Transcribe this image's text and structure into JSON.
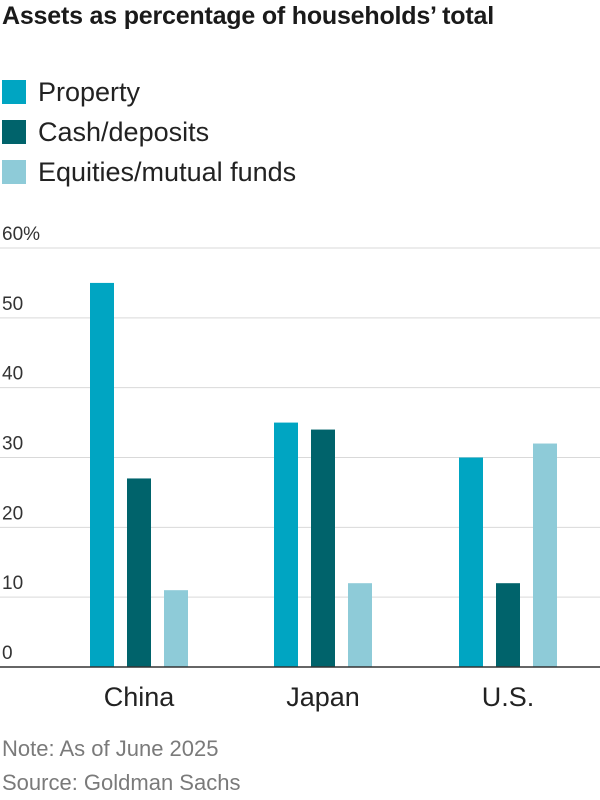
{
  "chart_data": {
    "type": "bar",
    "title": "Assets as percentage of households’ total",
    "categories": [
      "China",
      "Japan",
      "U.S."
    ],
    "series": [
      {
        "name": "Property",
        "color": "#00a5c2",
        "values": [
          55,
          35,
          30
        ]
      },
      {
        "name": "Cash/deposits",
        "color": "#00636b",
        "values": [
          27,
          34,
          12
        ]
      },
      {
        "name": "Equities/mutual funds",
        "color": "#8ecbd8",
        "values": [
          11,
          12,
          32
        ]
      }
    ],
    "ylim": [
      0,
      60
    ],
    "yticks": [
      0,
      10,
      20,
      30,
      40,
      50,
      60
    ],
    "ytick_labels": [
      "0",
      "10",
      "20",
      "30",
      "40",
      "50",
      "60%"
    ],
    "grid": true,
    "legend_position": "top-left",
    "xlabel": "",
    "ylabel": ""
  },
  "footer": {
    "note": "Note: As of June 2025",
    "source": "Source: Goldman Sachs"
  }
}
